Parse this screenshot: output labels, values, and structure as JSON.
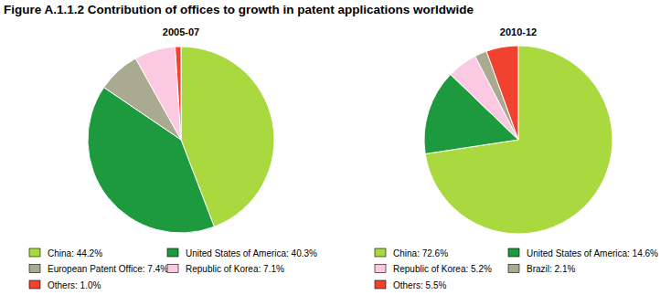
{
  "title": "Figure A.1.1.2 Contribution of offices to growth in patent applications worldwide",
  "chart_data": [
    {
      "type": "pie",
      "title": "2005-07",
      "categories": [
        "China: 44.2%",
        "United States of America: 40.3%",
        "European Patent Office: 7.4%",
        "Republic of Korea: 7.1%",
        "Others: 1.0%"
      ],
      "values": [
        44.2,
        40.3,
        7.4,
        7.1,
        1.0
      ],
      "colors": [
        "#a9d83f",
        "#1c9a3d",
        "#a9aa8f",
        "#fbc9e1",
        "#f1412f"
      ],
      "legend": "bottom"
    },
    {
      "type": "pie",
      "title": "2010-12",
      "categories": [
        "China: 72.6%",
        "United States of America: 14.6%",
        "Republic of Korea: 5.2%",
        "Brazil: 2.1%",
        "Others: 5.5%"
      ],
      "values": [
        72.6,
        14.6,
        5.2,
        2.1,
        5.5
      ],
      "colors": [
        "#a9d83f",
        "#1c9a3d",
        "#fbc9e1",
        "#a9aa8f",
        "#f1412f"
      ],
      "legend": "bottom"
    }
  ]
}
